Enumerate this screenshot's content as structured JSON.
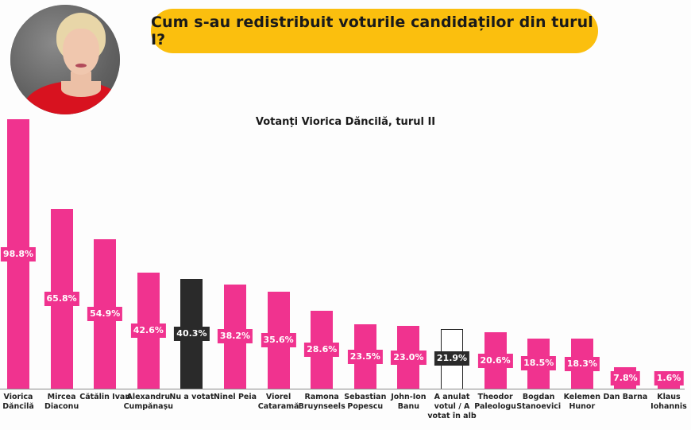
{
  "header": {
    "title": "Cum s-au redistribuit voturile candidaților din turul I?",
    "avatar_alt": "Viorica Dăncilă portrait"
  },
  "colors": {
    "pink": "#F0338F",
    "black": "#2A2A2A",
    "title_pill": "#FBBF0E",
    "outline": "#222222"
  },
  "chart_data": {
    "type": "bar",
    "title": "Votanți Viorica Dăncilă, turul II",
    "xlabel": "",
    "ylabel": "",
    "ylim": [
      0,
      100
    ],
    "grid": false,
    "legend": null,
    "categories": [
      "Viorica Dăncilă",
      "Mircea Diaconu",
      "Cătălin Ivan",
      "Alexandru Cumpănașu",
      "Nu a votat",
      "Ninel Peia",
      "Viorel Cataramă",
      "Ramona Bruynseels",
      "Sebastian Popescu",
      "John-Ion Banu",
      "A anulat votul / A votat în alb",
      "Theodor Paleologu",
      "Bogdan Stanoevici",
      "Kelemen Hunor",
      "Dan Barna",
      "Klaus Iohannis"
    ],
    "values": [
      98.8,
      65.8,
      54.9,
      42.6,
      40.3,
      38.2,
      35.6,
      28.6,
      23.5,
      23.0,
      21.9,
      20.6,
      18.5,
      18.3,
      7.8,
      1.6
    ],
    "value_labels": [
      "98.8%",
      "65.8%",
      "54.9%",
      "42.6%",
      "40.3%",
      "38.2%",
      "35.6%",
      "28.6%",
      "23.5%",
      "23.0%",
      "21.9%",
      "20.6%",
      "18.5%",
      "18.3%",
      "7.8%",
      "1.6%"
    ],
    "bar_styles": [
      "pink",
      "pink",
      "pink",
      "pink",
      "black",
      "pink",
      "pink",
      "pink",
      "pink",
      "pink",
      "outline",
      "pink",
      "pink",
      "pink",
      "pink",
      "pink"
    ],
    "category_lines": [
      [
        "Viorica",
        "Dăncilă"
      ],
      [
        "Mircea",
        "Diaconu"
      ],
      [
        "Cătălin Ivan"
      ],
      [
        "Alexandru",
        "Cumpănașu"
      ],
      [
        "Nu a votat"
      ],
      [
        "Ninel Peia"
      ],
      [
        "Viorel",
        "Cataramă"
      ],
      [
        "Ramona",
        "Bruynseels"
      ],
      [
        "Sebastian",
        "Popescu"
      ],
      [
        "John-Ion",
        "Banu"
      ],
      [
        "A anulat",
        "votul / A",
        "votat în alb"
      ],
      [
        "Theodor",
        "Paleologu"
      ],
      [
        "Bogdan",
        "Stanoevici"
      ],
      [
        "Kelemen",
        "Hunor"
      ],
      [
        "Dan Barna"
      ],
      [
        "Klaus",
        "Iohannis"
      ]
    ]
  }
}
